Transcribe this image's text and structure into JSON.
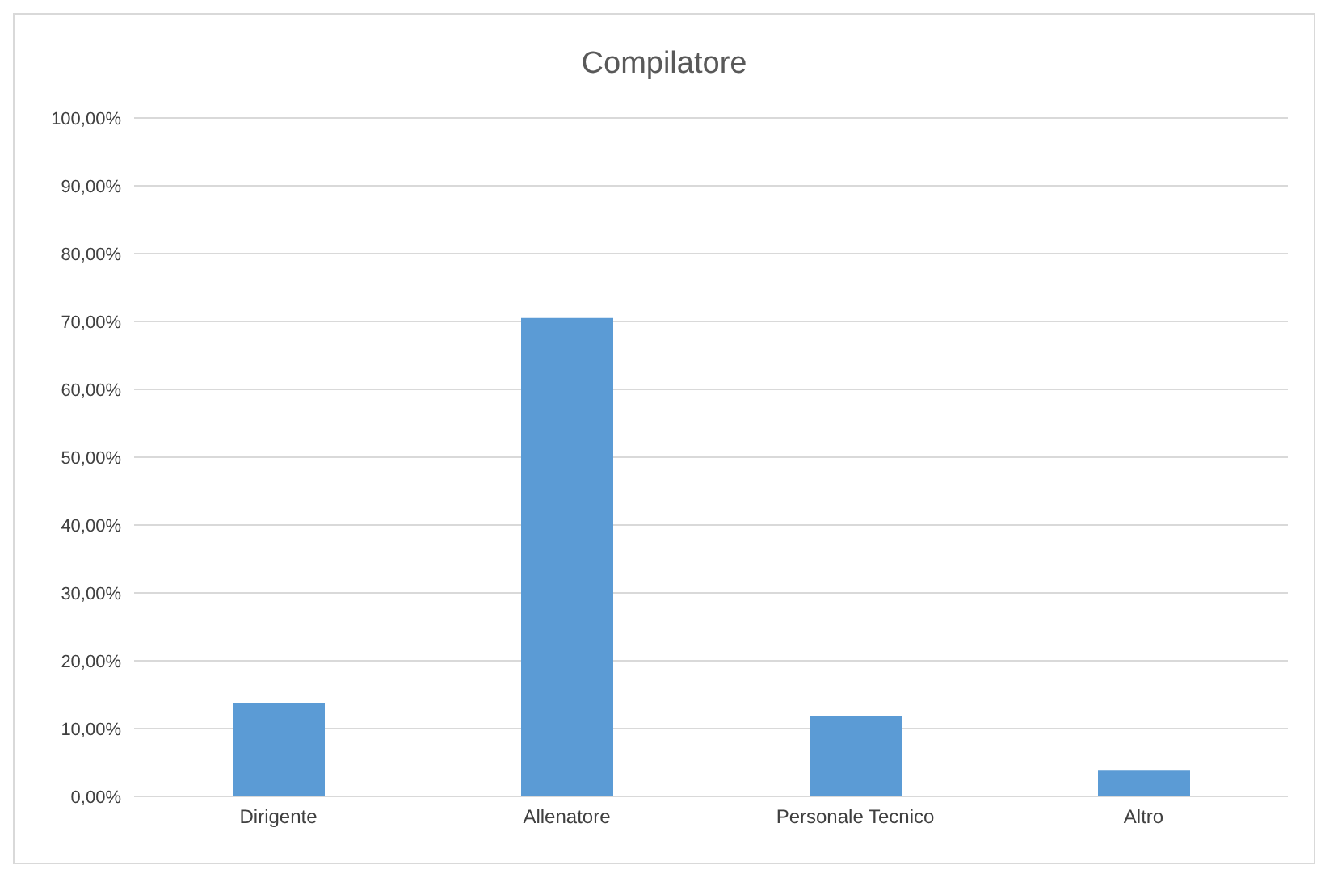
{
  "chart_data": {
    "type": "bar",
    "title": "Compilatore",
    "categories": [
      "Dirigente",
      "Allenatore",
      "Personale Tecnico",
      "Altro"
    ],
    "values": [
      13.8,
      70.5,
      11.8,
      3.9
    ],
    "color": "#5b9bd5",
    "ylim": [
      0,
      100
    ],
    "yticks": [
      {
        "value": 0,
        "label": "0,00%"
      },
      {
        "value": 10,
        "label": "10,00%"
      },
      {
        "value": 20,
        "label": "20,00%"
      },
      {
        "value": 30,
        "label": "30,00%"
      },
      {
        "value": 40,
        "label": "40,00%"
      },
      {
        "value": 50,
        "label": "50,00%"
      },
      {
        "value": 60,
        "label": "60,00%"
      },
      {
        "value": 70,
        "label": "70,00%"
      },
      {
        "value": 80,
        "label": "80,00%"
      },
      {
        "value": 90,
        "label": "90,00%"
      },
      {
        "value": 100,
        "label": "100,00%"
      }
    ],
    "grid": "y"
  }
}
